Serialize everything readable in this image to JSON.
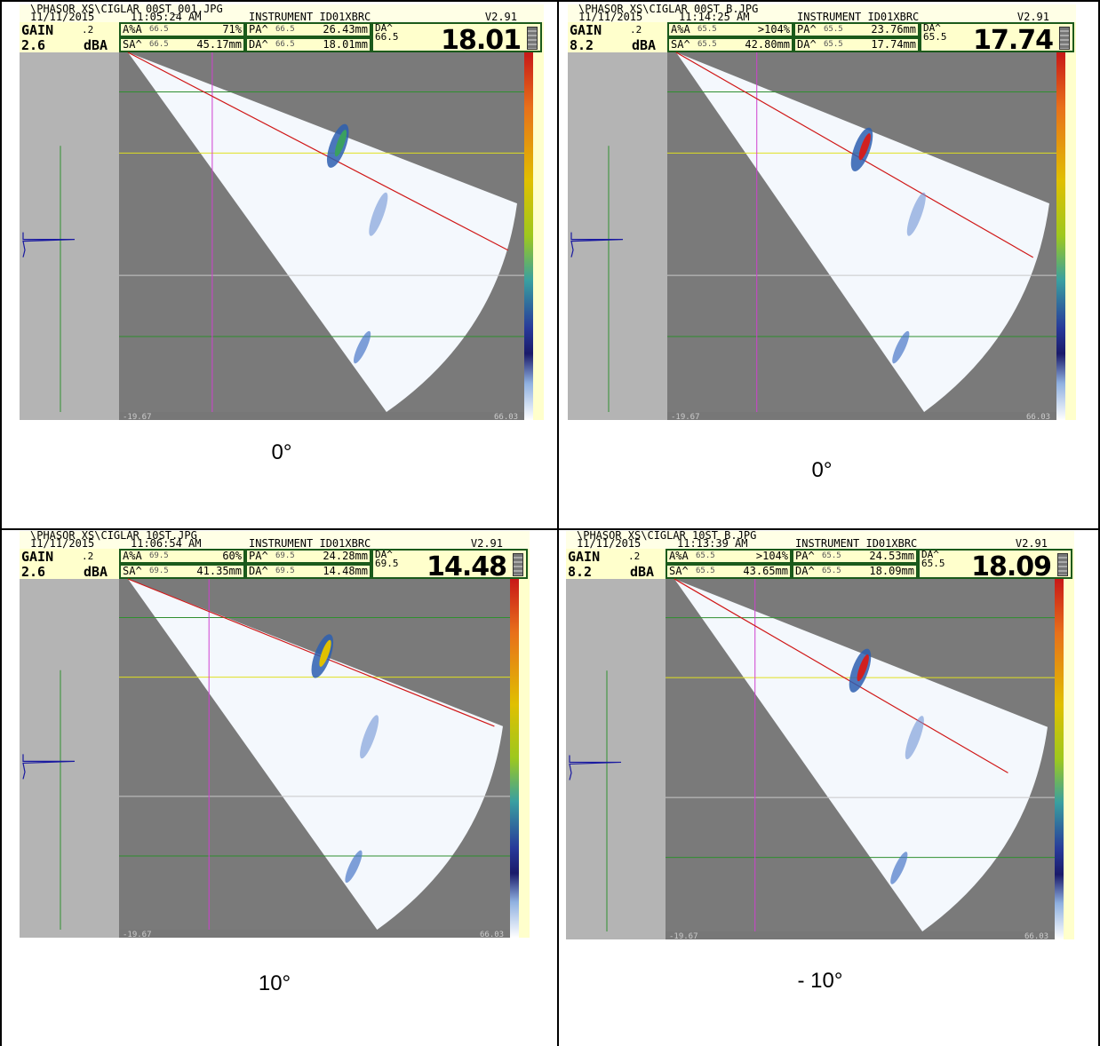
{
  "panels": [
    {
      "path": "\\PHASOR XS\\CIGLAR 00ST_001.JPG",
      "date": "11/11/2015",
      "time": "11:05:24 AM",
      "instrument": "INSTRUMENT ID01XBRC",
      "version": "V2.91",
      "gain_label": "GAIN",
      "gain_step": ".2",
      "gain_value": "2.6",
      "gain_unit": "dBA",
      "r1_label": "A%A",
      "r1_small": "66.5",
      "r1_value": "71%",
      "r2_label": "PA^",
      "r2_small": "66.5",
      "r2_value": "26.43mm",
      "r3_label": "SA^",
      "r3_small": "66.5",
      "r3_value": "45.17mm",
      "r4_label": "DA^",
      "r4_small": "66.5",
      "r4_value": "18.01mm",
      "da_label": "DA^",
      "da_angle": "66.5",
      "big_value": "18.01",
      "caption": "0°"
    },
    {
      "path": "\\PHASOR XS\\CIGLAR 00ST B.JPG",
      "date": "11/11/2015",
      "time": "11:14:25 AM",
      "instrument": "INSTRUMENT ID01XBRC",
      "version": "V2.91",
      "gain_label": "GAIN",
      "gain_step": ".2",
      "gain_value": "8.2",
      "gain_unit": "dBA",
      "r1_label": "A%A",
      "r1_small": "65.5",
      "r1_value": ">104%",
      "r2_label": "PA^",
      "r2_small": "65.5",
      "r2_value": "23.76mm",
      "r3_label": "SA^",
      "r3_small": "65.5",
      "r3_value": "42.80mm",
      "r4_label": "DA^",
      "r4_small": "65.5",
      "r4_value": "17.74mm",
      "da_label": "DA^",
      "da_angle": "65.5",
      "big_value": "17.74",
      "caption": "0°"
    },
    {
      "path": "\\PHASOR XS\\CIGLAR 10ST.JPG",
      "date": "11/11/2015",
      "time": "11:06:54 AM",
      "instrument": "INSTRUMENT ID01XBRC",
      "version": "V2.91",
      "gain_label": "GAIN",
      "gain_step": ".2",
      "gain_value": "2.6",
      "gain_unit": "dBA",
      "r1_label": "A%A",
      "r1_small": "69.5",
      "r1_value": "60%",
      "r2_label": "PA^",
      "r2_small": "69.5",
      "r2_value": "24.28mm",
      "r3_label": "SA^",
      "r3_small": "69.5",
      "r3_value": "41.35mm",
      "r4_label": "DA^",
      "r4_small": "69.5",
      "r4_value": "14.48mm",
      "da_label": "DA^",
      "da_angle": "69.5",
      "big_value": "14.48",
      "caption": "10°"
    },
    {
      "path": "\\PHASOR XS\\CIGLAR 10ST B.JPG",
      "date": "11/11/2015",
      "time": "11:13:39 AM",
      "instrument": "INSTRUMENT ID01XBRC",
      "version": "V2.91",
      "gain_label": "GAIN",
      "gain_step": ".2",
      "gain_value": "8.2",
      "gain_unit": "dBA",
      "r1_label": "A%A",
      "r1_small": "65.5",
      "r1_value": ">104%",
      "r2_label": "PA^",
      "r2_small": "65.5",
      "r2_value": "24.53mm",
      "r3_label": "SA^",
      "r3_small": "65.5",
      "r3_value": "43.65mm",
      "r4_label": "DA^",
      "r4_small": "65.5",
      "r4_value": "18.09mm",
      "da_label": "DA^",
      "da_angle": "65.5",
      "big_value": "18.09",
      "caption": "- 10°"
    }
  ],
  "axis": {
    "left_label": "-19.67",
    "right_label": "66.03"
  }
}
